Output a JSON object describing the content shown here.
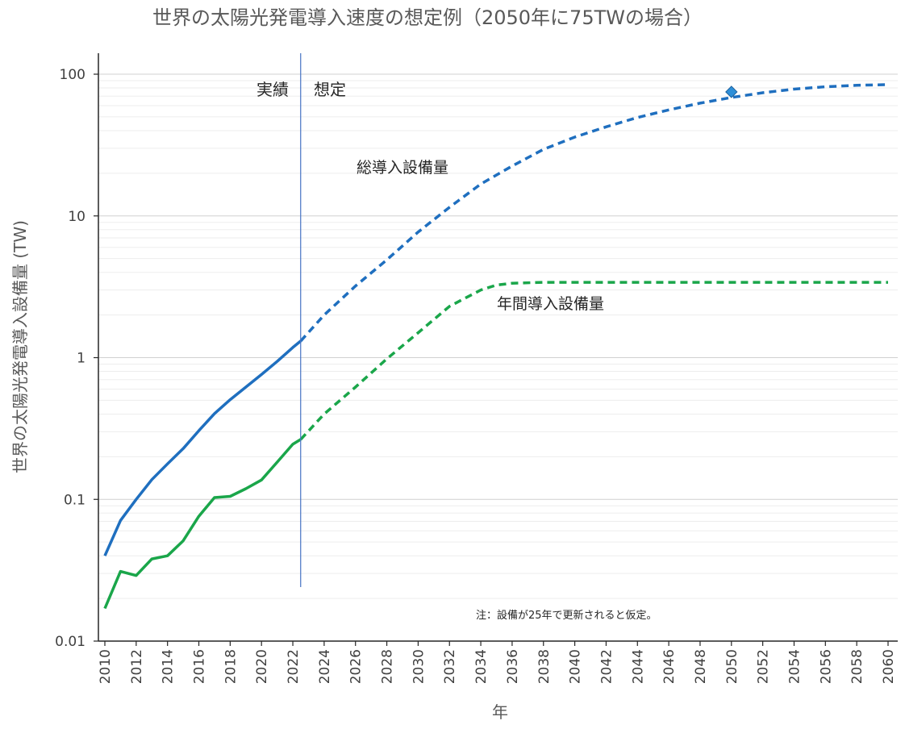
{
  "chart_data": {
    "type": "line",
    "title": "世界の太陽光発電導入速度の想定例（2050年に75TWの場合）",
    "xlabel": "年",
    "ylabel": "世界の太陽光発電導入設備量 (TW)",
    "yscale": "log",
    "ylim": [
      0.01,
      100
    ],
    "xlim": [
      2010,
      2060
    ],
    "y_ticks": [
      {
        "value": 0.01,
        "label": "0.01"
      },
      {
        "value": 0.1,
        "label": "0.1"
      },
      {
        "value": 1,
        "label": "1"
      },
      {
        "value": 10,
        "label": "10"
      },
      {
        "value": 100,
        "label": "100"
      }
    ],
    "x_ticks": [
      "2010",
      "2012",
      "2014",
      "2016",
      "2018",
      "2020",
      "2022",
      "2024",
      "2026",
      "2028",
      "2030",
      "2032",
      "2034",
      "2036",
      "2038",
      "2040",
      "2042",
      "2044",
      "2046",
      "2048",
      "2050",
      "2052",
      "2054",
      "2056",
      "2058",
      "2060"
    ],
    "grid": true,
    "divider": {
      "x": 2022.5,
      "left_label": "実績",
      "right_label": "想定"
    },
    "series": [
      {
        "name": "総導入設備量",
        "color": "#1f6fbf",
        "actual": {
          "x": [
            2010,
            2011,
            2012,
            2013,
            2014,
            2015,
            2016,
            2017,
            2018,
            2019,
            2020,
            2021,
            2022,
            2022.5
          ],
          "y": [
            0.04,
            0.071,
            0.1,
            0.138,
            0.178,
            0.228,
            0.305,
            0.403,
            0.505,
            0.62,
            0.76,
            0.94,
            1.18,
            1.31
          ]
        },
        "projected": {
          "x": [
            2022.5,
            2024,
            2026,
            2028,
            2030,
            2032,
            2034,
            2036,
            2038,
            2040,
            2042,
            2044,
            2046,
            2048,
            2050,
            2052,
            2054,
            2056,
            2058,
            2060
          ],
          "y": [
            1.31,
            2.0,
            3.2,
            4.9,
            7.7,
            11.5,
            16.8,
            22.5,
            29.5,
            36.0,
            42.5,
            49.5,
            56.0,
            62.5,
            68.5,
            74.0,
            78.5,
            81.5,
            83.5,
            84.5
          ]
        }
      },
      {
        "name": "年間導入設備量",
        "color": "#1aa64a",
        "actual": {
          "x": [
            2010,
            2011,
            2012,
            2013,
            2014,
            2015,
            2016,
            2017,
            2018,
            2019,
            2020,
            2021,
            2022,
            2022.5
          ],
          "y": [
            0.017,
            0.031,
            0.029,
            0.038,
            0.04,
            0.051,
            0.076,
            0.103,
            0.105,
            0.119,
            0.137,
            0.183,
            0.245,
            0.265
          ]
        },
        "projected": {
          "x": [
            2022.5,
            2024,
            2026,
            2028,
            2030,
            2032,
            2034,
            2035,
            2036,
            2038,
            2040,
            2045,
            2050,
            2055,
            2060
          ],
          "y": [
            0.265,
            0.4,
            0.62,
            0.98,
            1.5,
            2.3,
            3.0,
            3.25,
            3.35,
            3.4,
            3.4,
            3.4,
            3.4,
            3.4,
            3.4
          ]
        }
      }
    ],
    "marker": {
      "x": 2050,
      "y": 75,
      "shape": "diamond",
      "color": "#2e8fd8"
    },
    "note": "注：設備が25年で更新されると仮定。"
  }
}
